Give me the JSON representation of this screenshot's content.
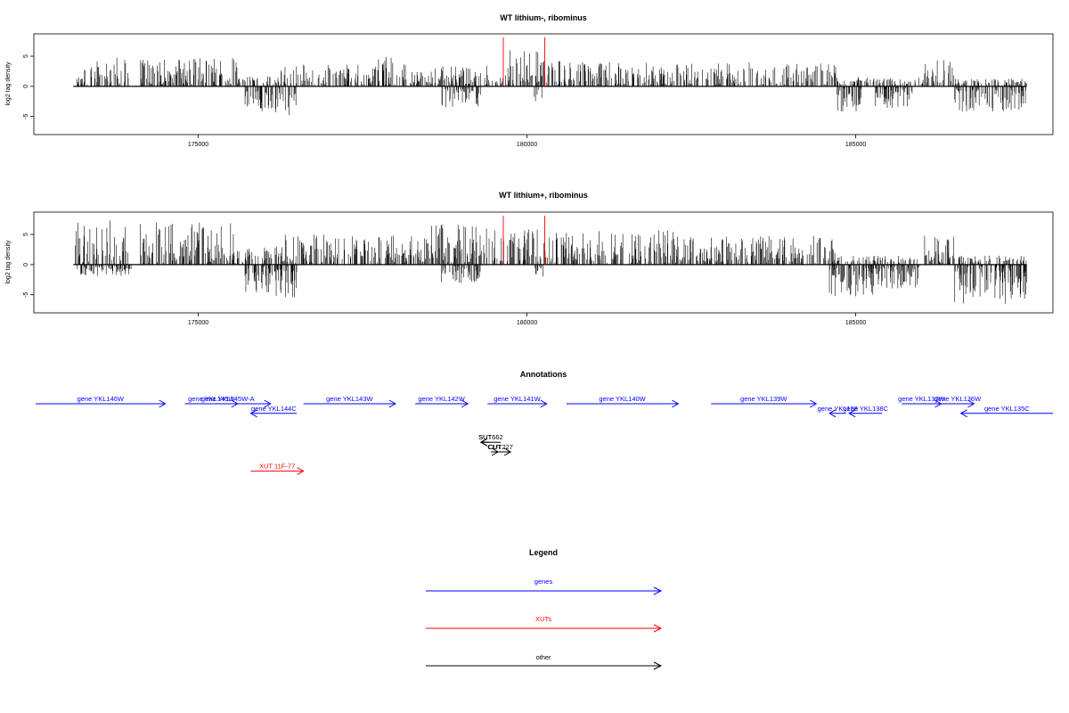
{
  "chart_data": [
    {
      "type": "bar",
      "title": "WT lithium-, ribominus",
      "ylabel": "log2 tag density",
      "xlabel": "",
      "xlim": [
        172500,
        188000
      ],
      "ylim": [
        -8,
        8.7
      ],
      "xticks": [
        175000,
        180000,
        185000
      ],
      "xtick_labels": [
        "175000",
        "180000",
        "185000"
      ],
      "yticks": [
        -5,
        0,
        5
      ],
      "ytick_labels": [
        "-5",
        "0",
        "5"
      ],
      "baseline": [
        173100,
        187600
      ],
      "markers": [
        {
          "x": 179640,
          "color": "#ff0000"
        },
        {
          "x": 180270,
          "color": "#ff0000"
        }
      ],
      "plus_strand_regions": [
        {
          "start": 173150,
          "end": 173750,
          "max": 4.3
        },
        {
          "start": 173750,
          "end": 173950,
          "max": 5.5
        },
        {
          "start": 174100,
          "end": 174850,
          "max": 4.5
        },
        {
          "start": 174850,
          "end": 175600,
          "max": 4.8
        },
        {
          "start": 175600,
          "end": 176200,
          "max": 1.8
        },
        {
          "start": 176200,
          "end": 177700,
          "max": 3.6
        },
        {
          "start": 177700,
          "end": 178250,
          "max": 5.0
        },
        {
          "start": 178250,
          "end": 178600,
          "max": 2.5
        },
        {
          "start": 178600,
          "end": 179400,
          "max": 3.8
        },
        {
          "start": 179400,
          "end": 179650,
          "max": 1.5
        },
        {
          "start": 179650,
          "end": 180300,
          "max": 6.0
        },
        {
          "start": 180300,
          "end": 180600,
          "max": 4.2
        },
        {
          "start": 180600,
          "end": 181900,
          "max": 4.0
        },
        {
          "start": 181900,
          "end": 182600,
          "max": 3.8
        },
        {
          "start": 182600,
          "end": 184700,
          "max": 4.0
        },
        {
          "start": 184700,
          "end": 186000,
          "max": 1.5
        },
        {
          "start": 186000,
          "end": 186500,
          "max": 4.5
        },
        {
          "start": 186500,
          "end": 187600,
          "max": 1.3
        }
      ],
      "minus_strand_regions": [
        {
          "start": 175700,
          "end": 176500,
          "min": -4.8
        },
        {
          "start": 178700,
          "end": 179300,
          "min": -3.5
        },
        {
          "start": 180100,
          "end": 180250,
          "min": -2.5
        },
        {
          "start": 184700,
          "end": 185100,
          "min": -4.6
        },
        {
          "start": 185300,
          "end": 185900,
          "min": -3.6
        },
        {
          "start": 186500,
          "end": 187600,
          "min": -4.2
        }
      ],
      "seed": 17
    },
    {
      "type": "bar",
      "title": "WT lithium+, ribominus",
      "ylabel": "log2 tag density",
      "xlabel": "",
      "xlim": [
        172500,
        188000
      ],
      "ylim": [
        -8,
        8.7
      ],
      "xticks": [
        175000,
        180000,
        185000
      ],
      "xtick_labels": [
        "175000",
        "180000",
        "185000"
      ],
      "yticks": [
        -5,
        0,
        5
      ],
      "ytick_labels": [
        "-5",
        "0",
        "5"
      ],
      "baseline": [
        173100,
        187600
      ],
      "markers": [
        {
          "x": 179640,
          "color": "#ff0000"
        },
        {
          "x": 180270,
          "color": "#ff0000"
        }
      ],
      "plus_strand_regions": [
        {
          "start": 173100,
          "end": 173950,
          "max": 7.8
        },
        {
          "start": 174100,
          "end": 175600,
          "max": 7.0
        },
        {
          "start": 175600,
          "end": 176300,
          "max": 3.0
        },
        {
          "start": 176300,
          "end": 178400,
          "max": 5.0
        },
        {
          "start": 178400,
          "end": 179400,
          "max": 7.0
        },
        {
          "start": 179400,
          "end": 180300,
          "max": 6.5
        },
        {
          "start": 180300,
          "end": 182300,
          "max": 5.8
        },
        {
          "start": 182300,
          "end": 184700,
          "max": 4.8
        },
        {
          "start": 184700,
          "end": 186000,
          "max": 1.5
        },
        {
          "start": 186000,
          "end": 186500,
          "max": 4.8
        },
        {
          "start": 186500,
          "end": 187600,
          "max": 1.5
        }
      ],
      "minus_strand_regions": [
        {
          "start": 173150,
          "end": 174000,
          "min": -2.0
        },
        {
          "start": 175700,
          "end": 176500,
          "min": -5.7
        },
        {
          "start": 178700,
          "end": 179300,
          "min": -3.2
        },
        {
          "start": 180100,
          "end": 180250,
          "min": -2.0
        },
        {
          "start": 184600,
          "end": 185400,
          "min": -5.3
        },
        {
          "start": 185400,
          "end": 186000,
          "min": -4.0
        },
        {
          "start": 186500,
          "end": 187600,
          "min": -7.0
        }
      ],
      "seed": 91
    }
  ],
  "annotations": {
    "title": "Annotations",
    "features": [
      {
        "label": "gene YKL146W",
        "start": 172500,
        "end": 174500,
        "strand": "+",
        "row": 0,
        "color": "#0000ff"
      },
      {
        "label": "gene YKL145W",
        "start": 174800,
        "end": 175600,
        "strand": "+",
        "row": 0,
        "color": "#0000ff"
      },
      {
        "label": "gene YKL145W-A",
        "start": 174800,
        "end": 176100,
        "strand": "+",
        "row": 0,
        "color": "#0000ff"
      },
      {
        "label": "gene YKL144C",
        "start": 175800,
        "end": 176500,
        "strand": "-",
        "row": 1,
        "color": "#0000ff"
      },
      {
        "label": "gene YKL143W",
        "start": 176600,
        "end": 178000,
        "strand": "+",
        "row": 0,
        "color": "#0000ff"
      },
      {
        "label": "gene YKL142W",
        "start": 178300,
        "end": 179100,
        "strand": "+",
        "row": 0,
        "color": "#0000ff"
      },
      {
        "label": "gene YKL141W",
        "start": 179400,
        "end": 180300,
        "strand": "+",
        "row": 0,
        "color": "#0000ff"
      },
      {
        "label": "gene YKL140W",
        "start": 180600,
        "end": 182300,
        "strand": "+",
        "row": 0,
        "color": "#0000ff"
      },
      {
        "label": "gene YKL139W",
        "start": 182800,
        "end": 184400,
        "strand": "+",
        "row": 0,
        "color": "#0000ff"
      },
      {
        "label": "gene YKL138",
        "start": 184600,
        "end": 184850,
        "strand": "-",
        "row": 1,
        "color": "#0000ff"
      },
      {
        "label": "gene YKL138C",
        "start": 184900,
        "end": 185400,
        "strand": "-",
        "row": 1,
        "color": "#0000ff"
      },
      {
        "label": "gene YKL137W",
        "start": 185700,
        "end": 186300,
        "strand": "+",
        "row": 0,
        "color": "#0000ff"
      },
      {
        "label": "gene YKL136W",
        "start": 186300,
        "end": 186800,
        "strand": "+",
        "row": 0,
        "color": "#0000ff"
      },
      {
        "label": "gene YKL135C",
        "start": 186600,
        "end": 188000,
        "strand": "-",
        "row": 1,
        "color": "#0000ff"
      },
      {
        "label": "SUT",
        "start": 179300,
        "end": 179430,
        "strand": "-",
        "row": 4,
        "color": "#000000"
      },
      {
        "label": "SUT662",
        "start": 179300,
        "end": 179600,
        "strand": "-",
        "row": 4,
        "color": "#000000"
      },
      {
        "label": "CUT",
        "start": 179450,
        "end": 179560,
        "strand": "+",
        "row": 5,
        "color": "#000000"
      },
      {
        "label": "CUT227",
        "start": 179450,
        "end": 179750,
        "strand": "+",
        "row": 5,
        "color": "#000000"
      },
      {
        "label": "XUT 11F-77",
        "start": 175800,
        "end": 176600,
        "strand": "+",
        "row": 7,
        "color": "#ff0000"
      }
    ]
  },
  "legend": {
    "title": "Legend",
    "items": [
      {
        "label": "genes",
        "color": "#0000ff"
      },
      {
        "label": "XUTs",
        "color": "#ff0000"
      },
      {
        "label": "other",
        "color": "#000000"
      }
    ]
  }
}
